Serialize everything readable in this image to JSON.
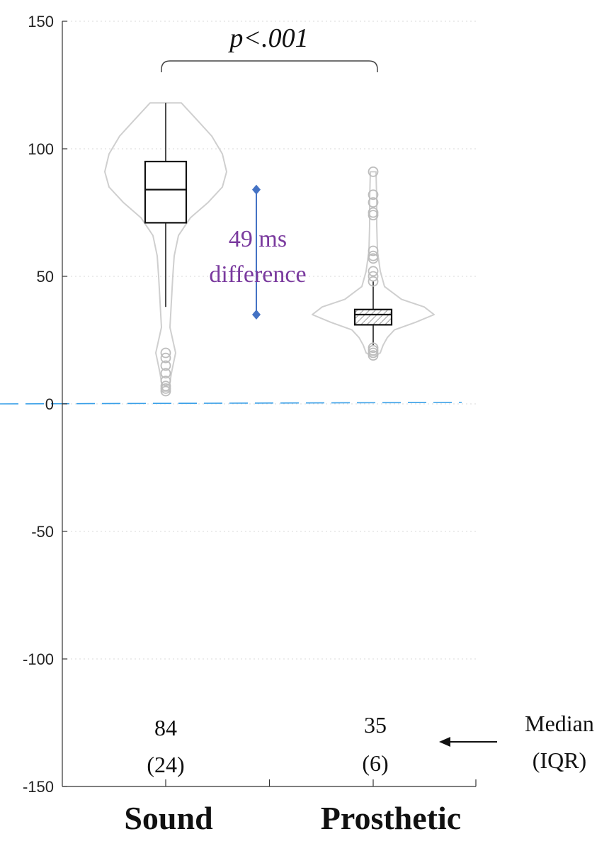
{
  "chart_data": {
    "type": "violin-box",
    "ylim": [
      -150,
      150
    ],
    "yticks": [
      "150",
      "100",
      "50",
      "0",
      "-50",
      "-100",
      "-150"
    ],
    "ytick_values": [
      150,
      100,
      50,
      0,
      -50,
      -100,
      -150
    ],
    "grid": true,
    "reference_line": 0,
    "reference_line_color": "#3aa0e8",
    "categories": [
      "Sound",
      "Prosthetic"
    ],
    "series": [
      {
        "category": "Sound",
        "median": 84,
        "q1": 71,
        "q3": 95,
        "whisker_low": 38,
        "whisker_high": 118,
        "outliers": [
          20,
          18,
          15,
          12,
          9,
          7,
          6,
          5
        ],
        "median_label": "84",
        "iqr_label": "(24)",
        "violin_profile": [
          [
            118,
            22
          ],
          [
            112,
            42
          ],
          [
            105,
            65
          ],
          [
            98,
            80
          ],
          [
            91,
            86
          ],
          [
            85,
            80
          ],
          [
            79,
            60
          ],
          [
            73,
            35
          ],
          [
            66,
            18
          ],
          [
            58,
            12
          ],
          [
            50,
            10
          ],
          [
            40,
            8
          ],
          [
            30,
            6
          ],
          [
            20,
            14
          ],
          [
            12,
            8
          ],
          [
            5,
            4
          ]
        ],
        "hatched": false
      },
      {
        "category": "Prosthetic",
        "median": 35,
        "q1": 31,
        "q3": 37,
        "whisker_low": 23,
        "whisker_high": 48,
        "outliers": [
          91,
          82,
          79,
          75,
          74,
          60,
          58,
          57,
          52,
          50,
          48,
          22,
          21,
          20,
          19
        ],
        "median_label": "35",
        "iqr_label": "(6)",
        "violin_profile": [
          [
            91,
            4
          ],
          [
            80,
            5
          ],
          [
            70,
            5
          ],
          [
            60,
            6
          ],
          [
            52,
            10
          ],
          [
            46,
            16
          ],
          [
            41,
            40
          ],
          [
            38,
            72
          ],
          [
            35,
            86
          ],
          [
            32,
            60
          ],
          [
            29,
            30
          ],
          [
            26,
            20
          ],
          [
            23,
            14
          ],
          [
            20,
            10
          ],
          [
            19,
            4
          ]
        ],
        "hatched": true
      }
    ],
    "significance": {
      "label": "p<.001"
    },
    "difference": {
      "from": 84,
      "to": 35,
      "label_line1": "49 ms",
      "label_line2": "difference",
      "color": "#4472c4",
      "text_color": "#7a3a9e"
    },
    "annotation": {
      "line1": "Median",
      "line2": "(IQR)"
    }
  }
}
